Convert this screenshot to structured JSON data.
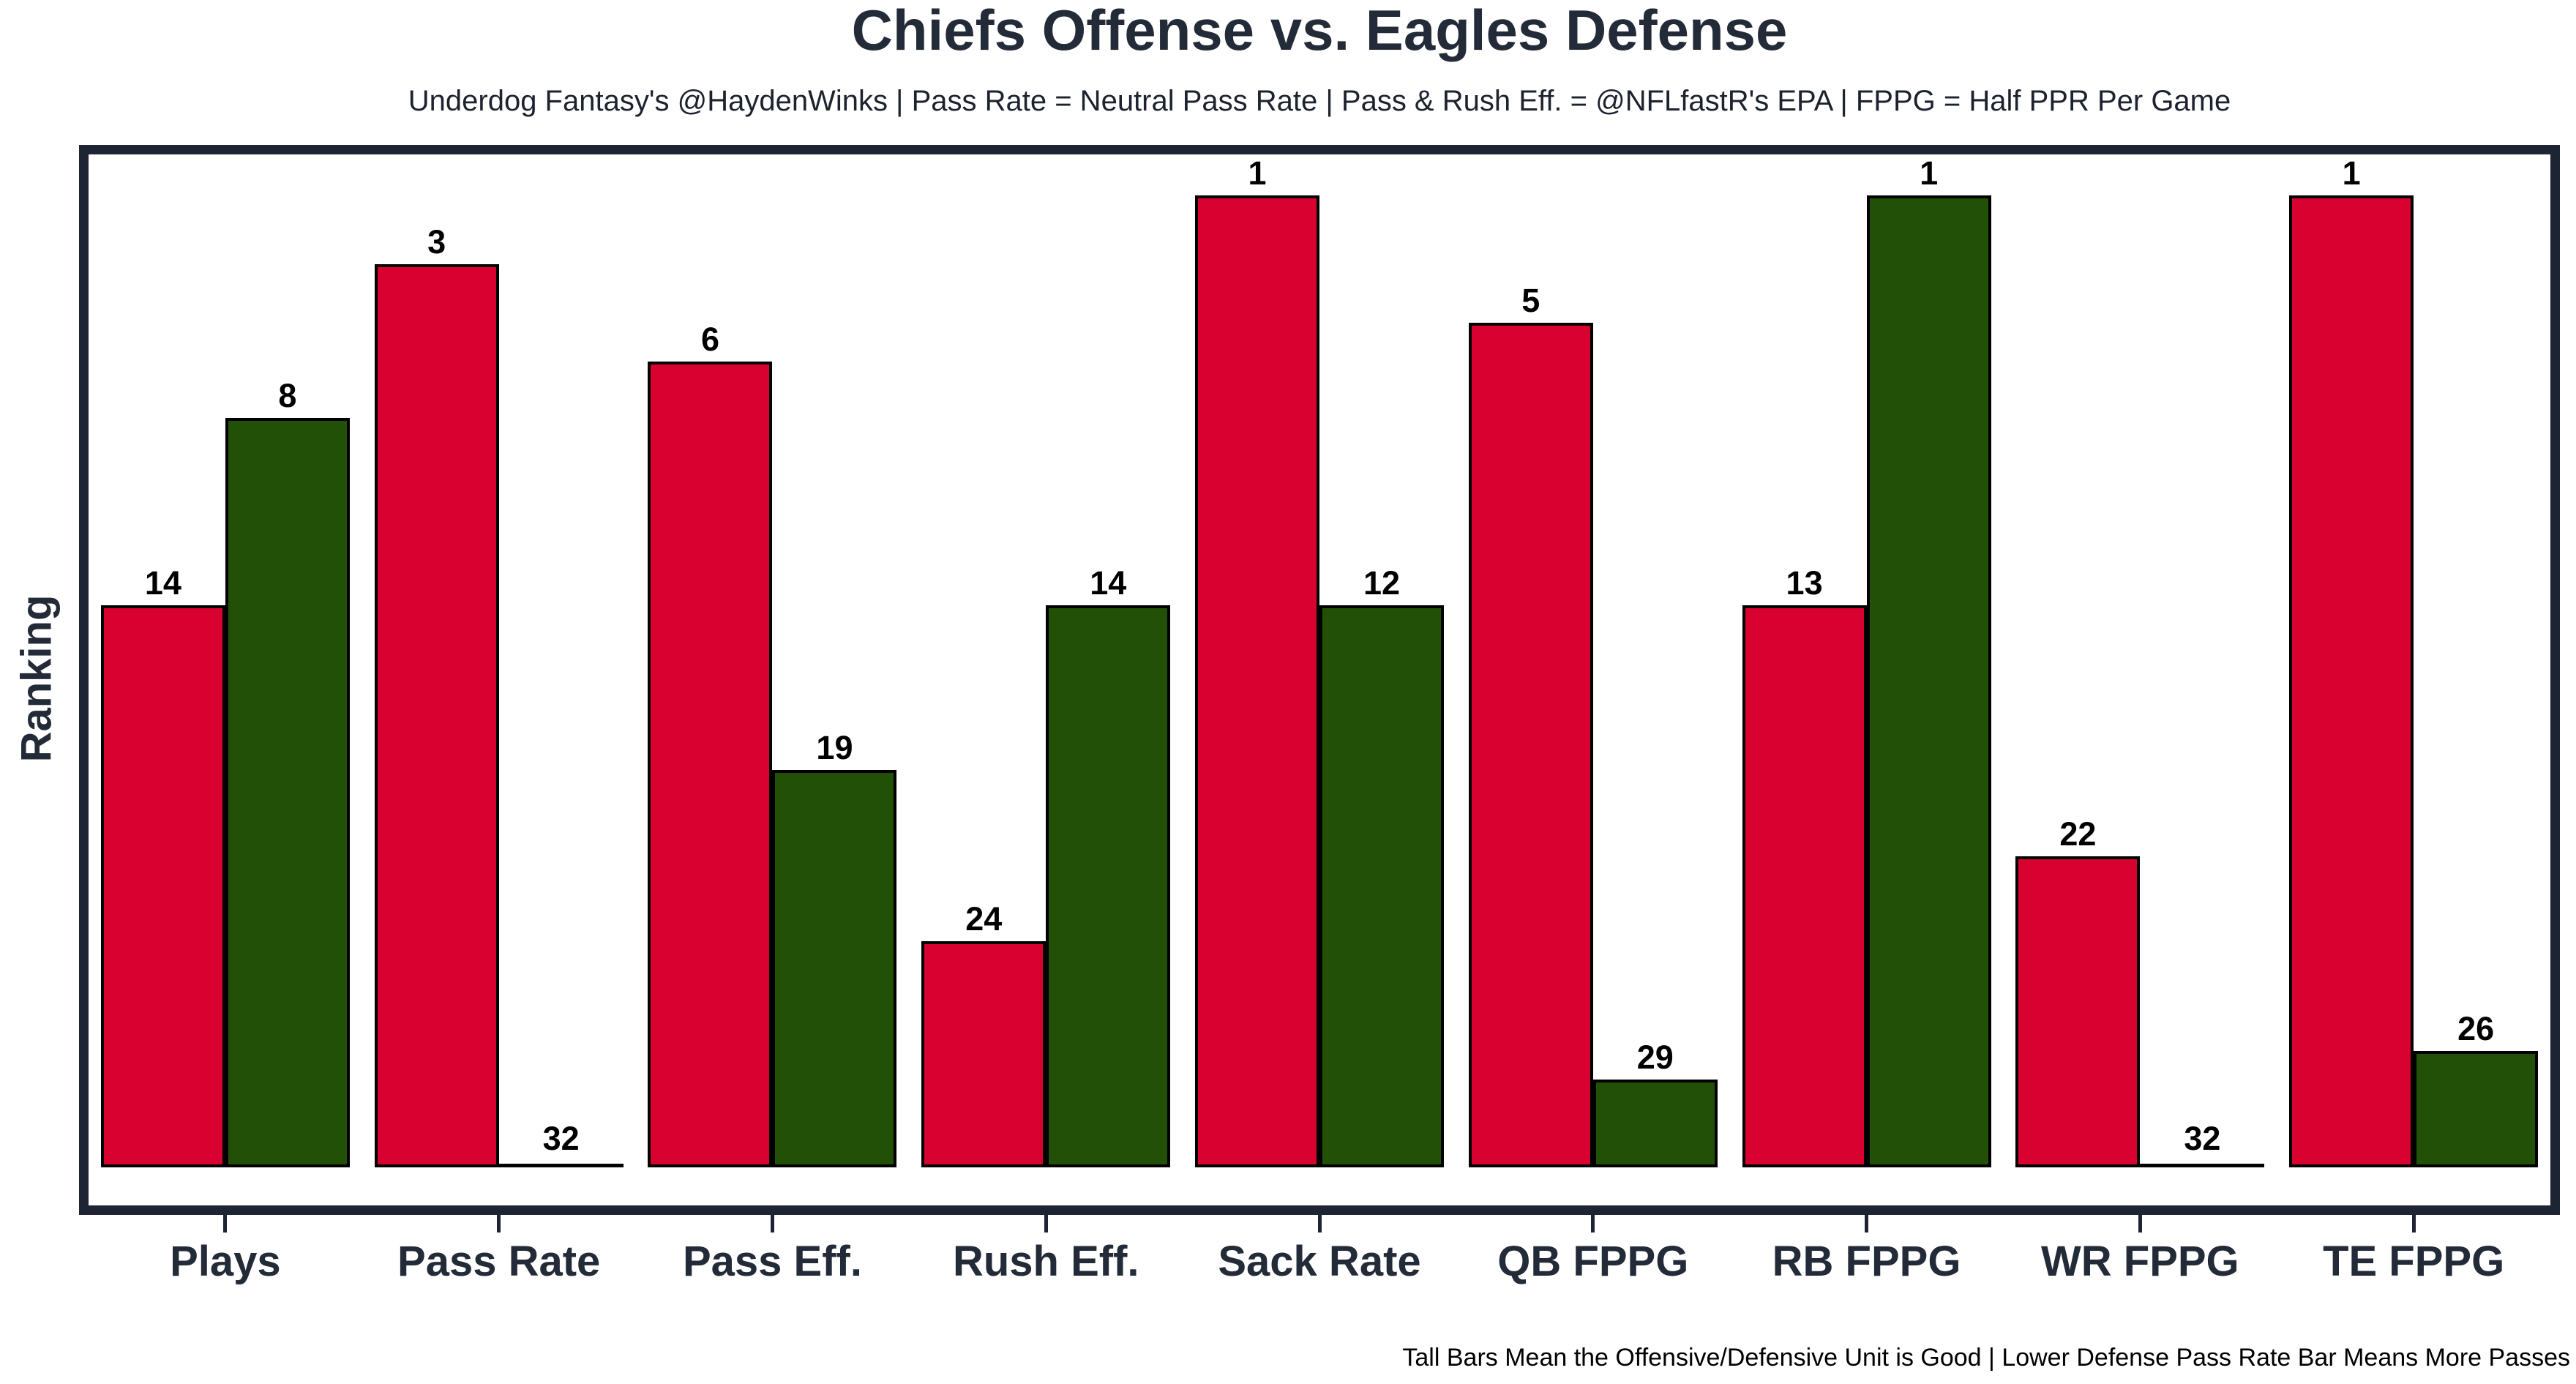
{
  "header": {
    "title": "Chiefs Offense vs. Eagles Defense",
    "subtitle": "Underdog Fantasy's @HaydenWinks | Pass Rate = Neutral Pass Rate | Pass & Rush Eff. = @NFLfastR's EPA | FPPG = Half PPR Per Game"
  },
  "footnote": "Tall Bars Mean the Offensive/Defensive Unit is Good | Lower Defense Pass Rate Bar Means More Passes",
  "colors": {
    "offense_red": "#D8012F",
    "defense_green": "#235007",
    "frame_navy": "#1E2433",
    "bar_outline": "#000000",
    "text_dark": "#232A38",
    "background": "#FFFFFF"
  },
  "chart_data": {
    "type": "bar",
    "title": "Chiefs Offense vs. Eagles Defense",
    "subtitle": "Underdog Fantasy's @HaydenWinks | Pass Rate = Neutral Pass Rate | Pass & Rush Eff. = @NFLfastR's EPA | FPPG = Half PPR Per Game",
    "ylabel": "Ranking",
    "xlabel": "",
    "categories": [
      "Plays",
      "Pass Rate",
      "Pass Eff.",
      "Rush Eff.",
      "Sack Rate",
      "QB FPPG",
      "RB FPPG",
      "WR FPPG",
      "TE FPPG"
    ],
    "value_label_meaning": "NFL ranking (1 = best of 32, 32 = worst of 32); bar height scales with underlying stat quality, rank shown above each bar",
    "series": [
      {
        "name": "Chiefs Offense",
        "color_key": "offense_red",
        "ranks": [
          14,
          3,
          6,
          24,
          1,
          5,
          13,
          22,
          1
        ],
        "bar_height_pct": [
          57.8,
          92.9,
          82.9,
          23.3,
          100,
          86.9,
          57.8,
          32.0,
          100
        ]
      },
      {
        "name": "Eagles Defense",
        "color_key": "defense_green",
        "ranks": [
          8,
          32,
          19,
          14,
          12,
          29,
          1,
          32,
          26
        ],
        "bar_height_pct": [
          77.1,
          0.3,
          40.9,
          57.8,
          57.8,
          9.0,
          100,
          0.3,
          12.0
        ]
      }
    ],
    "yaxis": {
      "tick_labels_shown": false,
      "best_rank": 1,
      "worst_rank": 32
    },
    "grid": false,
    "legend_position": "none"
  }
}
